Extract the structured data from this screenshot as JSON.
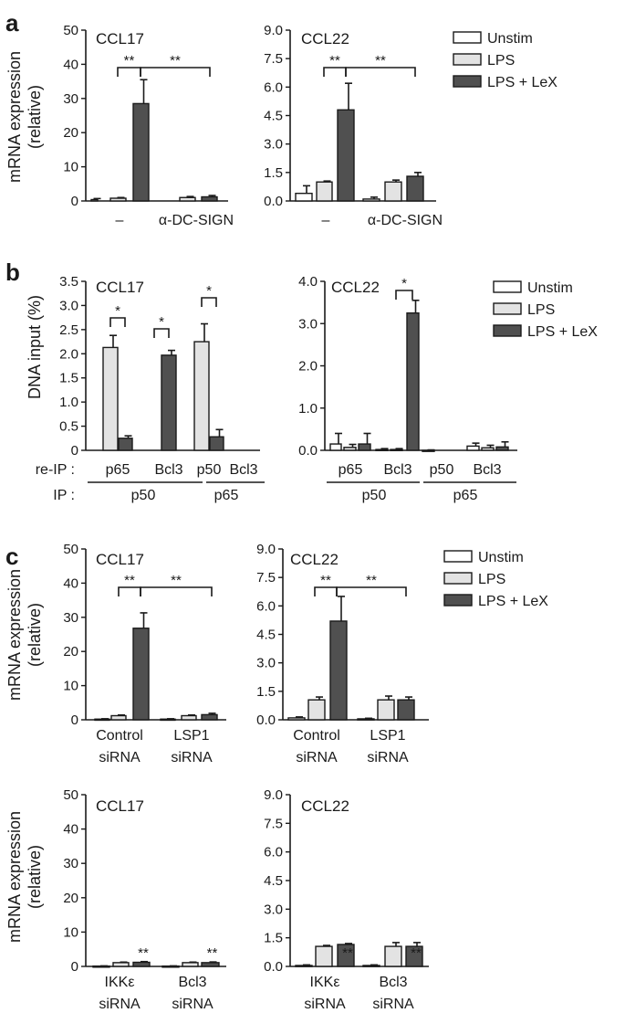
{
  "colors": {
    "unstim": "#ffffff",
    "lps": "#e3e3e3",
    "lex": "#505050",
    "stroke": "#1a1a1a"
  },
  "legend": [
    "Unstim",
    "LPS",
    "LPS + LeX"
  ],
  "panels": {
    "a": "a",
    "b": "b",
    "c": "c"
  },
  "labels": {
    "mrna": "mRNA expression",
    "relative": "(relative)",
    "dna": "DNA input (%)",
    "reip": "re-IP :",
    "ip": "IP :"
  },
  "chart_data": [
    {
      "id": "a-ccl17",
      "type": "bar",
      "title": "CCL17",
      "ylim": [
        0,
        50
      ],
      "yticks": [
        "0",
        "10",
        "20",
        "30",
        "40",
        "50"
      ],
      "groups": [
        "–",
        "α-DC-SIGN"
      ],
      "series": [
        {
          "key": "unstim",
          "values": [
            0.4,
            null
          ],
          "errors": [
            0.3,
            null
          ]
        },
        {
          "key": "lps",
          "values": [
            0.8,
            1.0
          ],
          "errors": [
            0.2,
            0.3
          ]
        },
        {
          "key": "lex",
          "values": [
            28.5,
            1.2
          ],
          "errors": [
            7.0,
            0.4
          ]
        }
      ],
      "brackets": [
        {
          "label": "**"
        },
        {
          "label": "**"
        }
      ]
    },
    {
      "id": "a-ccl22",
      "type": "bar",
      "title": "CCL22",
      "ylim": [
        0,
        9
      ],
      "yticks": [
        "0.0",
        "1.5",
        "3.0",
        "4.5",
        "6.0",
        "7.5",
        "9.0"
      ],
      "groups": [
        "–",
        "α-DC-SIGN"
      ],
      "series": [
        {
          "key": "unstim",
          "values": [
            0.4,
            0.1
          ],
          "errors": [
            0.4,
            0.1
          ]
        },
        {
          "key": "lps",
          "values": [
            1.0,
            1.0
          ],
          "errors": [
            0.05,
            0.1
          ]
        },
        {
          "key": "lex",
          "values": [
            4.8,
            1.3
          ],
          "errors": [
            1.4,
            0.2
          ]
        }
      ],
      "brackets": [
        {
          "label": "**"
        },
        {
          "label": "**"
        }
      ]
    },
    {
      "id": "b-ccl17",
      "type": "bar",
      "title": "CCL17",
      "ylim": [
        0,
        3.5
      ],
      "yticks": [
        "0",
        "0.5",
        "1.0",
        "1.5",
        "2.0",
        "2.5",
        "3.0",
        "3.5"
      ],
      "groups": [
        "p65",
        "Bcl3",
        "p50",
        "Bcl3"
      ],
      "ip_groups": [
        "p50",
        "p65"
      ],
      "series": [
        {
          "key": "lps",
          "values": [
            2.13,
            null,
            2.25,
            null
          ],
          "errors": [
            0.25,
            null,
            0.37,
            null
          ]
        },
        {
          "key": "lex",
          "values": [
            0.25,
            1.97,
            0.28,
            null
          ],
          "errors": [
            0.05,
            0.1,
            0.15,
            null
          ]
        }
      ],
      "brackets": [
        {
          "label": "*"
        },
        {
          "label": "*"
        },
        {
          "label": "*"
        }
      ]
    },
    {
      "id": "b-ccl22",
      "type": "bar",
      "title": "CCL22",
      "ylim": [
        0,
        4.0
      ],
      "yticks": [
        "0.0",
        "1.0",
        "2.0",
        "3.0",
        "4.0"
      ],
      "groups": [
        "p65",
        "Bcl3",
        "p50",
        "Bcl3"
      ],
      "ip_groups": [
        "p50",
        "p65"
      ],
      "series": [
        {
          "key": "unstim",
          "values": [
            0.15,
            0.02,
            0.0,
            0.1
          ],
          "errors": [
            0.25,
            0.02,
            0.01,
            0.07
          ]
        },
        {
          "key": "lps",
          "values": [
            0.07,
            0.02,
            null,
            0.06
          ],
          "errors": [
            0.07,
            0.02,
            null,
            0.06
          ]
        },
        {
          "key": "lex",
          "values": [
            0.15,
            3.25,
            null,
            0.08
          ],
          "errors": [
            0.25,
            0.3,
            null,
            0.12
          ]
        }
      ],
      "brackets": [
        {
          "label": "*"
        }
      ]
    },
    {
      "id": "c-ccl17-lsp1",
      "type": "bar",
      "title": "CCL17",
      "ylim": [
        0,
        50
      ],
      "yticks": [
        "0",
        "10",
        "20",
        "30",
        "40",
        "50"
      ],
      "groups": [
        [
          "Control",
          "siRNA"
        ],
        [
          "LSP1",
          "siRNA"
        ]
      ],
      "series": [
        {
          "key": "unstim",
          "values": [
            0.2,
            0.2
          ],
          "errors": [
            0.1,
            0.1
          ]
        },
        {
          "key": "lps",
          "values": [
            1.2,
            1.2
          ],
          "errors": [
            0.2,
            0.2
          ]
        },
        {
          "key": "lex",
          "values": [
            26.8,
            1.5
          ],
          "errors": [
            4.5,
            0.4
          ]
        }
      ],
      "brackets": [
        {
          "label": "**"
        },
        {
          "label": "**"
        }
      ]
    },
    {
      "id": "c-ccl22-lsp1",
      "type": "bar",
      "title": "CCL22",
      "ylim": [
        0,
        9
      ],
      "yticks": [
        "0.0",
        "1.5",
        "3.0",
        "4.5",
        "6.0",
        "7.5",
        "9.0"
      ],
      "groups": [
        [
          "Control",
          "siRNA"
        ],
        [
          "LSP1",
          "siRNA"
        ]
      ],
      "series": [
        {
          "key": "unstim",
          "values": [
            0.1,
            0.05
          ],
          "errors": [
            0.05,
            0.03
          ]
        },
        {
          "key": "lps",
          "values": [
            1.05,
            1.05
          ],
          "errors": [
            0.15,
            0.2
          ]
        },
        {
          "key": "lex",
          "values": [
            5.2,
            1.05
          ],
          "errors": [
            1.3,
            0.15
          ]
        }
      ],
      "brackets": [
        {
          "label": "**"
        },
        {
          "label": "**"
        }
      ]
    },
    {
      "id": "c-ccl17-ikk",
      "type": "bar",
      "title": "CCL17",
      "ylim": [
        0,
        50
      ],
      "yticks": [
        "0",
        "10",
        "20",
        "30",
        "40",
        "50"
      ],
      "groups": [
        [
          "IKKε",
          "siRNA"
        ],
        [
          "Bcl3",
          "siRNA"
        ]
      ],
      "series": [
        {
          "key": "unstim",
          "values": [
            0.1,
            0.1
          ],
          "errors": [
            0.05,
            0.05
          ]
        },
        {
          "key": "lps",
          "values": [
            1.1,
            1.1
          ],
          "errors": [
            0.15,
            0.15
          ]
        },
        {
          "key": "lex",
          "values": [
            1.2,
            1.1
          ],
          "errors": [
            0.2,
            0.2
          ]
        }
      ],
      "stars": [
        "**",
        "**"
      ]
    },
    {
      "id": "c-ccl22-ikk",
      "type": "bar",
      "title": "CCL22",
      "ylim": [
        0,
        9
      ],
      "yticks": [
        "0.0",
        "1.5",
        "3.0",
        "4.5",
        "6.0",
        "7.5",
        "9.0"
      ],
      "groups": [
        [
          "IKKε",
          "siRNA"
        ],
        [
          "Bcl3",
          "siRNA"
        ]
      ],
      "series": [
        {
          "key": "unstim",
          "values": [
            0.05,
            0.05
          ],
          "errors": [
            0.03,
            0.03
          ]
        },
        {
          "key": "lps",
          "values": [
            1.05,
            1.05
          ],
          "errors": [
            0.05,
            0.2
          ]
        },
        {
          "key": "lex",
          "values": [
            1.15,
            1.05
          ],
          "errors": [
            0.05,
            0.2
          ]
        }
      ],
      "stars": [
        "**",
        "**"
      ]
    }
  ]
}
